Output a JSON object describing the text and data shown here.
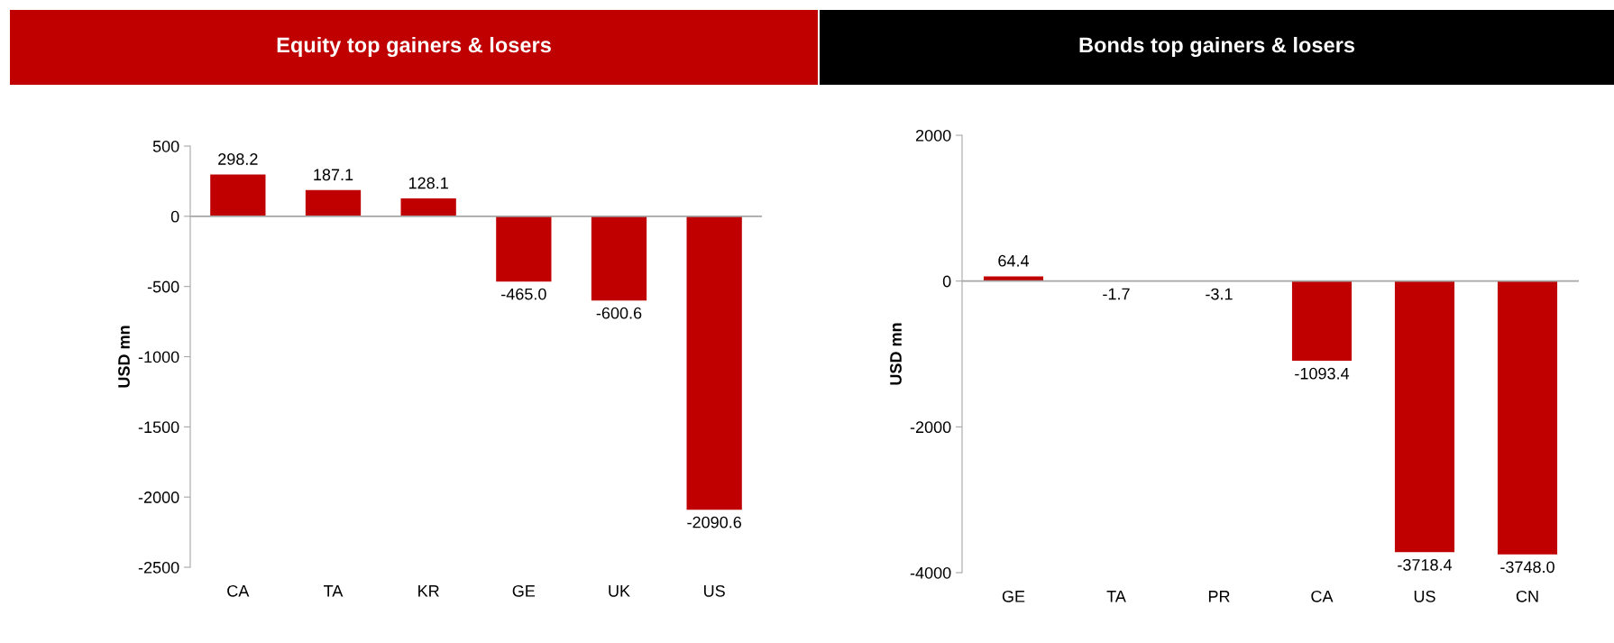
{
  "chart_data": [
    {
      "type": "bar",
      "title": "Equity top gainers & losers",
      "ylabel": "USD mn",
      "categories": [
        "CA",
        "TA",
        "KR",
        "GE",
        "UK",
        "US"
      ],
      "values": [
        298.2,
        187.1,
        128.1,
        -465.0,
        -600.6,
        -2090.6
      ],
      "color": "#c00000",
      "value_labels": [
        "298.2",
        "187.1",
        "128.1",
        "-465.0",
        "-600.6",
        "-2090.6"
      ],
      "ylim": [
        -2500,
        500
      ],
      "yticks": [
        -2500,
        -2000,
        -1500,
        -1000,
        -500,
        0,
        500
      ]
    },
    {
      "type": "bar",
      "title": "Bonds top gainers & losers",
      "ylabel": "USD mn",
      "categories": [
        "GE",
        "TA",
        "PR",
        "CA",
        "US",
        "CN"
      ],
      "values": [
        64.4,
        -1.7,
        -3.1,
        -1093.4,
        -3718.4,
        -3748.0
      ],
      "color": "#c00000",
      "value_labels": [
        "64.4",
        "-1.7",
        "-3.1",
        "-1093.4",
        "-3718.4",
        "-3748.0"
      ],
      "ylim": [
        -4000,
        2000
      ],
      "yticks": [
        -4000,
        -2000,
        0,
        2000
      ]
    }
  ]
}
